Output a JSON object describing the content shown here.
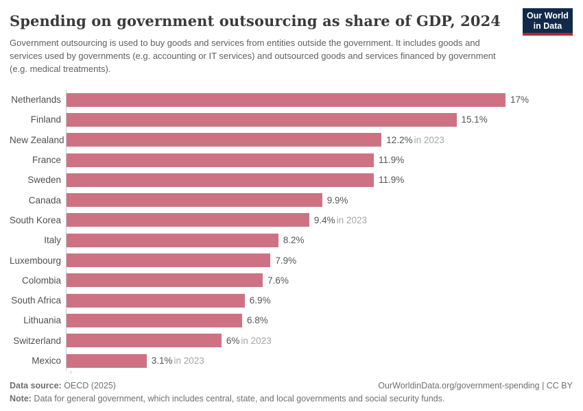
{
  "header": {
    "title": "Spending on government outsourcing as share of GDP, 2024",
    "subtitle": "Government outsourcing is used to buy goods and services from entities outside the government. It includes goods and services used by governments (e.g. accounting or IT services) and outsourced goods and services financed by government (e.g. medical treatments).",
    "logo": {
      "line1": "Our World",
      "line2": "in Data"
    }
  },
  "chart_data": {
    "type": "bar",
    "orientation": "horizontal",
    "title": "Spending on government outsourcing as share of GDP, 2024",
    "categories": [
      "Netherlands",
      "Finland",
      "New Zealand",
      "France",
      "Sweden",
      "Canada",
      "South Korea",
      "Italy",
      "Luxembourg",
      "Colombia",
      "South Africa",
      "Lithuania",
      "Switzerland",
      "Mexico"
    ],
    "values": [
      17,
      15.1,
      12.2,
      11.9,
      11.9,
      9.9,
      9.4,
      8.2,
      7.9,
      7.6,
      6.9,
      6.8,
      6,
      3.1
    ],
    "value_labels": [
      "17%",
      "15.1%",
      "12.2%",
      "11.9%",
      "11.9%",
      "9.9%",
      "9.4%",
      "8.2%",
      "7.9%",
      "7.6%",
      "6.9%",
      "6.8%",
      "6%",
      "3.1%"
    ],
    "notes": [
      "",
      "",
      "in 2023",
      "",
      "",
      "",
      "in 2023",
      "",
      "",
      "",
      "",
      "",
      "in 2023",
      "in 2023"
    ],
    "xlim": [
      0,
      17
    ],
    "unit": "% of GDP",
    "grid": false,
    "legend": "none",
    "bar_color": "#ce7283",
    "axis_line_color": "#c9c9c9"
  },
  "footer": {
    "datasource_label": "Data source:",
    "datasource_value": " OECD (2025)",
    "rights": "OurWorldinData.org/government-spending | CC BY",
    "note_label": "Note:",
    "note_value": " Data for general government, which includes central, state, and local governments and social security funds."
  }
}
